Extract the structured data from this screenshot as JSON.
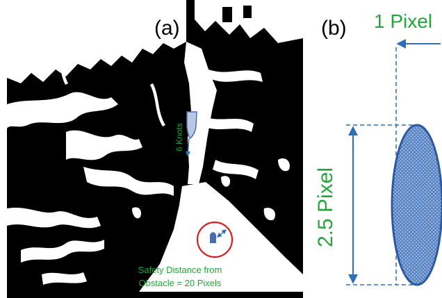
{
  "panel_a": {
    "label": "(a)",
    "speed_label": "6 Knots",
    "safety_line1": "Safety Distance from",
    "safety_line2": "Obstacle = 20 Pixels"
  },
  "panel_b": {
    "label": "(b)",
    "width_label": "1 Pixel",
    "height_label": "2.5 Pixel"
  },
  "colors": {
    "land": "#000000",
    "water": "#ffffff",
    "annotation_green": "#21a63a",
    "arrow_blue": "#2f6fb6",
    "ellipse_fill": "#5b86c6",
    "ellipse_stroke": "#2d5a9e",
    "circle_red": "#d62020"
  }
}
